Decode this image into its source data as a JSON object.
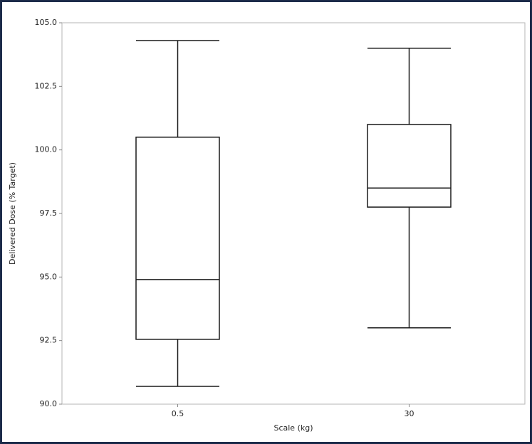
{
  "chart_data": {
    "type": "box",
    "x_label": "Scale (kg)",
    "y_label": "Delivered Dose (% Target)",
    "categories": [
      "0.5",
      "30"
    ],
    "boxes": [
      {
        "whisker_low": 90.7,
        "q1": 92.55,
        "median": 94.9,
        "q3": 100.5,
        "whisker_high": 104.3
      },
      {
        "whisker_low": 93.0,
        "q1": 97.75,
        "median": 98.5,
        "q3": 101.0,
        "whisker_high": 104.0
      }
    ],
    "ylim": [
      90,
      105
    ],
    "yticks": [
      {
        "value": 90,
        "label": "90.0"
      },
      {
        "value": 92.5,
        "label": "92.5"
      },
      {
        "value": 95,
        "label": "95.0"
      },
      {
        "value": 97.5,
        "label": "97.5"
      },
      {
        "value": 100,
        "label": "100.0"
      },
      {
        "value": 102.5,
        "label": "102.5"
      },
      {
        "value": 105,
        "label": "105.0"
      }
    ],
    "color": "#1a1a1a"
  }
}
